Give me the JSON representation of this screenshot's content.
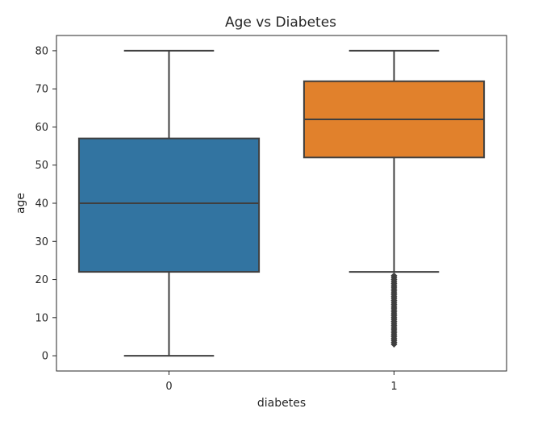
{
  "chart_data": {
    "type": "box",
    "title": "Age vs Diabetes",
    "xlabel": "diabetes",
    "ylabel": "age",
    "ylim": [
      -4,
      84
    ],
    "yticks": [
      0,
      10,
      20,
      30,
      40,
      50,
      60,
      70,
      80
    ],
    "grid": false,
    "categories": [
      "0",
      "1"
    ],
    "boxes": [
      {
        "category": "0",
        "whisker_low": 0,
        "q1": 22,
        "median": 40,
        "q3": 57,
        "whisker_high": 80,
        "color": "#3274a1",
        "outliers": []
      },
      {
        "category": "1",
        "whisker_low": 22,
        "q1": 52,
        "median": 62,
        "q3": 72,
        "whisker_high": 80,
        "color": "#e1812c",
        "outliers": [
          21,
          20.5,
          20,
          19.5,
          19,
          18.5,
          18,
          17.5,
          17,
          16.5,
          16,
          15.5,
          15,
          14.5,
          14,
          13.5,
          13,
          12.5,
          12,
          11.5,
          11,
          10.5,
          10,
          9.5,
          9,
          8.5,
          8,
          7.5,
          7,
          6.5,
          6,
          5.5,
          5,
          4.5,
          4,
          3.5,
          3
        ]
      }
    ]
  }
}
